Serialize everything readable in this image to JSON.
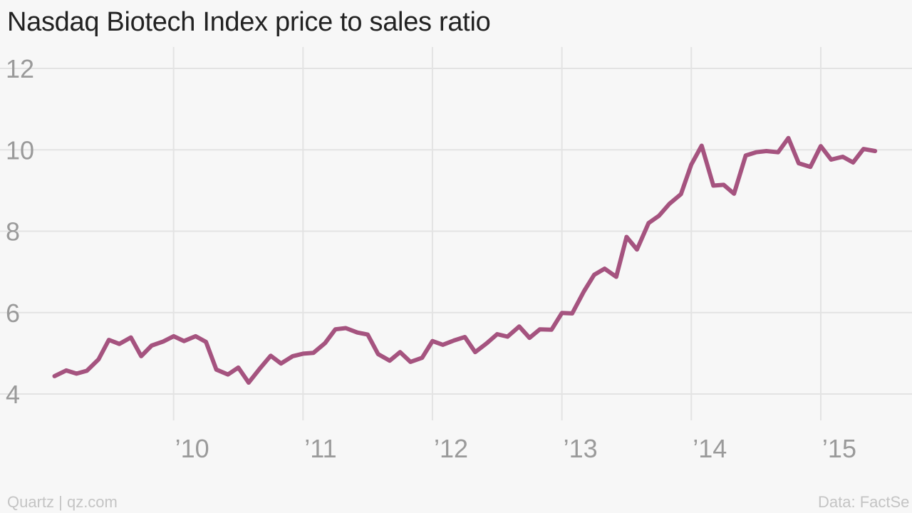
{
  "title": "Nasdaq Biotech Index price to sales ratio",
  "footer": {
    "credit": "Quartz | qz.com",
    "source": "Data: FactSe"
  },
  "colors": {
    "line": "#a5537f",
    "grid": "#e3e3e3",
    "tick_text": "#9a9a9a",
    "background": "#f7f7f7"
  },
  "chart_data": {
    "type": "line",
    "title": "Nasdaq Biotech Index price to sales ratio",
    "xlabel": "",
    "ylabel": "",
    "ylim": [
      4,
      12
    ],
    "xlim": [
      2009.0,
      2015.65
    ],
    "grid": true,
    "y_ticks": [
      4,
      6,
      8,
      10,
      12
    ],
    "x_ticks": [
      {
        "value": 2010,
        "label": "’10"
      },
      {
        "value": 2011,
        "label": "’11"
      },
      {
        "value": 2012,
        "label": "’12"
      },
      {
        "value": 2013,
        "label": "’13"
      },
      {
        "value": 2014,
        "label": "’14"
      },
      {
        "value": 2015,
        "label": "’15"
      }
    ],
    "series": [
      {
        "x": [
          2009.08,
          2009.17,
          2009.25,
          2009.33,
          2009.42,
          2009.5,
          2009.58,
          2009.67,
          2009.75,
          2009.83,
          2009.92,
          2010.0,
          2010.08,
          2010.17,
          2010.25,
          2010.33,
          2010.42,
          2010.5,
          2010.58,
          2010.67,
          2010.75,
          2010.83,
          2010.92,
          2011.0,
          2011.08,
          2011.17,
          2011.25,
          2011.33,
          2011.42,
          2011.5,
          2011.58,
          2011.67,
          2011.75,
          2011.83,
          2011.92,
          2012.0,
          2012.08,
          2012.17,
          2012.25,
          2012.33,
          2012.42,
          2012.5,
          2012.58,
          2012.67,
          2012.75,
          2012.83,
          2012.92,
          2013.0,
          2013.08,
          2013.17,
          2013.25,
          2013.33,
          2013.42,
          2013.5,
          2013.58,
          2013.67,
          2013.75,
          2013.83,
          2013.92,
          2014.0,
          2014.08,
          2014.17,
          2014.25,
          2014.33,
          2014.42,
          2014.5,
          2014.58,
          2014.67,
          2014.75,
          2014.83,
          2014.92,
          2015.0,
          2015.08,
          2015.17,
          2015.25,
          2015.33,
          2015.42
        ],
        "values": [
          4.44,
          4.58,
          4.5,
          4.57,
          4.85,
          5.33,
          5.23,
          5.39,
          4.93,
          5.19,
          5.29,
          5.42,
          5.3,
          5.42,
          5.28,
          4.6,
          4.48,
          4.65,
          4.28,
          4.64,
          4.94,
          4.75,
          4.93,
          4.99,
          5.01,
          5.25,
          5.59,
          5.62,
          5.51,
          5.46,
          4.98,
          4.82,
          5.03,
          4.79,
          4.89,
          5.3,
          5.21,
          5.32,
          5.4,
          5.03,
          5.25,
          5.47,
          5.41,
          5.66,
          5.38,
          5.59,
          5.58,
          5.99,
          5.98,
          6.52,
          6.93,
          7.08,
          6.88,
          7.86,
          7.55,
          8.2,
          8.38,
          8.67,
          8.91,
          9.64,
          10.1,
          9.12,
          9.14,
          8.92,
          9.86,
          9.94,
          9.97,
          9.94,
          10.29,
          9.67,
          9.58,
          10.09,
          9.76,
          9.83,
          9.69,
          10.02,
          9.97
        ]
      }
    ]
  }
}
